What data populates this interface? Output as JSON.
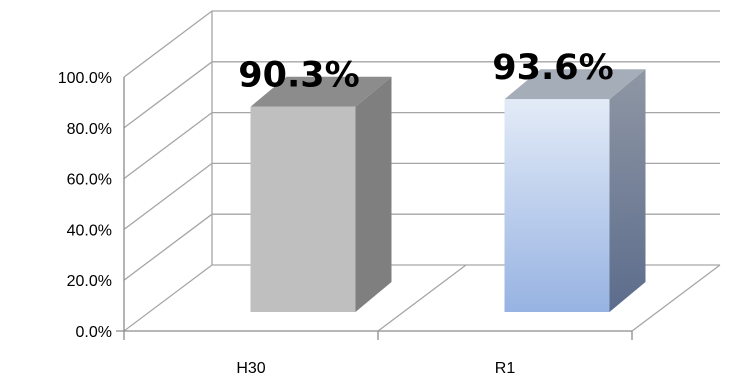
{
  "chart_data": {
    "type": "bar",
    "categories": [
      "H30",
      "R1"
    ],
    "values": [
      90.3,
      93.6
    ],
    "data_labels": [
      "90.3%",
      "93.6%"
    ],
    "title": "",
    "xlabel": "",
    "ylabel": "",
    "ylim": [
      0,
      100
    ],
    "y_ticks": [
      0,
      20,
      40,
      60,
      80,
      100
    ],
    "y_tick_labels": [
      "0.0%",
      "20.0%",
      "40.0%",
      "60.0%",
      "80.0%",
      "100.0%"
    ],
    "grid": true,
    "legend": "none",
    "style": "3d-column",
    "colors": {
      "H30": {
        "front": "#bfbfbf",
        "side": "#7f7f7f",
        "top": "#8c8c8c"
      },
      "R1": {
        "front_top": "#e3ebf7",
        "front_bottom": "#97b3e2",
        "side_top": "#8f97a4",
        "side_bottom": "#5c6c8c",
        "top": "#a5adb9"
      },
      "gridline": "#a6a6a6"
    }
  }
}
